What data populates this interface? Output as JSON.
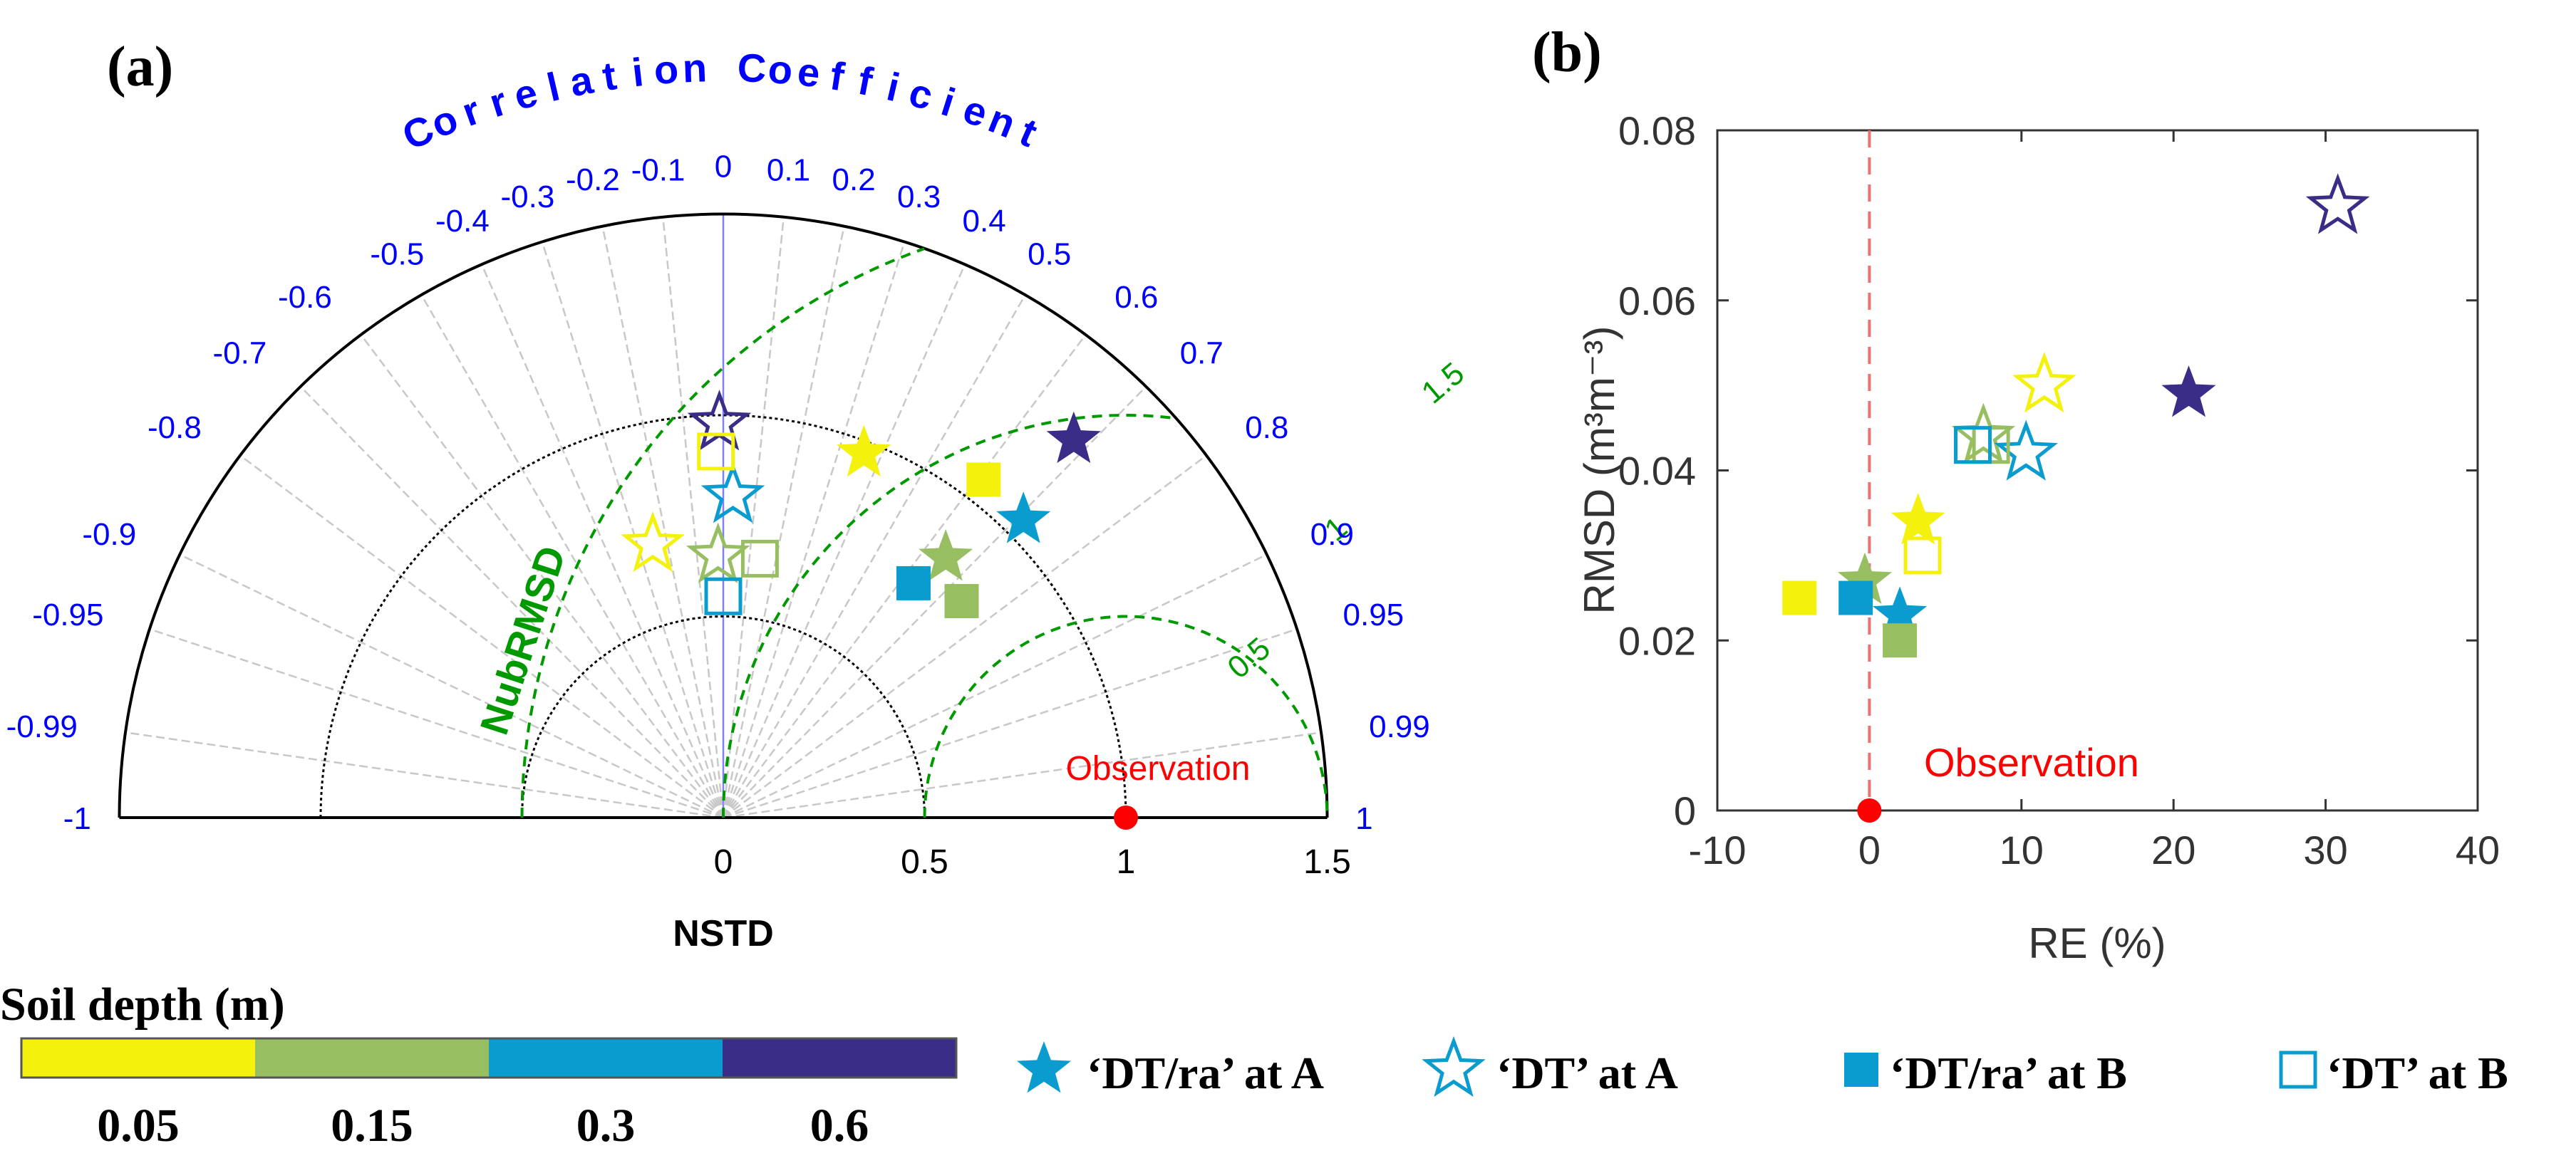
{
  "colors": {
    "depth_0.05": "#F4F10C",
    "depth_0.15": "#98BE62",
    "depth_0.3": "#0A9CCF",
    "depth_0.6": "#3A2D88",
    "observation": "#FF0000",
    "axis_text_blue": "#0000FF",
    "nubrmsd_green": "#009A00"
  },
  "panel_a": {
    "label": "(a)",
    "corr_title": "Correlation Coefficient",
    "xlabel": "NSTD",
    "nubrmsd_label": "NubRMSD",
    "observation_label": "Observation"
  },
  "panel_b": {
    "label": "(b)",
    "xlabel": "RE (%)",
    "ylabel": "RMSD (m³m⁻³)",
    "observation_label": "Observation"
  },
  "colorbar": {
    "title": "Soil depth (m)",
    "labels": [
      "0.05",
      "0.15",
      "0.3",
      "0.6"
    ]
  },
  "legend": [
    {
      "label": "‘DT/ra’ at A",
      "marker": "filled-star"
    },
    {
      "label": "‘DT’ at A",
      "marker": "open-star"
    },
    {
      "label": "‘DT/ra’ at B",
      "marker": "filled-square"
    },
    {
      "label": "‘DT’ at B",
      "marker": "open-square"
    }
  ],
  "chart_data": [
    {
      "type": "scatter",
      "subtype": "taylor-diagram",
      "title": "(a)",
      "xlabel": "NSTD",
      "angular_label": "Correlation Coefficient",
      "xlim": [
        -1.5,
        1.5
      ],
      "radial_ticks": [
        0,
        0.5,
        1,
        1.5
      ],
      "radial_tick_labels": [
        "0",
        "0.5",
        "1",
        "1.5"
      ],
      "correlation_ticks": [
        -1,
        -0.99,
        -0.95,
        -0.9,
        -0.8,
        -0.7,
        -0.6,
        -0.5,
        -0.4,
        -0.3,
        -0.2,
        -0.1,
        0,
        0.1,
        0.2,
        0.3,
        0.4,
        0.5,
        0.6,
        0.7,
        0.8,
        0.9,
        0.95,
        0.99,
        1
      ],
      "correlation_tick_labels": [
        "-1",
        "-0.99",
        "-0.95",
        "-0.9",
        "-0.8",
        "-0.7",
        "-0.6",
        "-0.5",
        "-0.4",
        "-0.3",
        "-0.2",
        "-0.1",
        "0",
        "0.1",
        "0.2",
        "0.3",
        "0.4",
        "0.5",
        "0.6",
        "0.7",
        "0.8",
        "0.9",
        "0.95",
        "0.99",
        "1"
      ],
      "nubrmsd_contours": [
        0.5,
        1,
        1.5
      ],
      "nubrmsd_labels": [
        "0.5",
        "1",
        "1.5"
      ],
      "observation": {
        "nstd": 1.0,
        "corr": 1.0
      },
      "series": [
        {
          "name": "‘DT/ra’ at A",
          "marker": "filled-star",
          "points": [
            {
              "depth": 0.05,
              "nstd": 0.97,
              "corr": 0.36
            },
            {
              "depth": 0.15,
              "nstd": 0.85,
              "corr": 0.65
            },
            {
              "depth": 0.3,
              "nstd": 1.05,
              "corr": 0.71
            },
            {
              "depth": 0.6,
              "nstd": 1.28,
              "corr": 0.68
            }
          ]
        },
        {
          "name": "‘DT’ at A",
          "marker": "open-star",
          "points": [
            {
              "depth": 0.05,
              "nstd": 0.7,
              "corr": -0.25
            },
            {
              "depth": 0.15,
              "nstd": 0.65,
              "corr": -0.02
            },
            {
              "depth": 0.3,
              "nstd": 0.8,
              "corr": 0.03
            },
            {
              "depth": 0.6,
              "nstd": 0.98,
              "corr": -0.01
            }
          ]
        },
        {
          "name": "‘DT/ra’ at B",
          "marker": "filled-square",
          "points": [
            {
              "depth": 0.05,
              "nstd": 1.06,
              "corr": 0.61
            },
            {
              "depth": 0.15,
              "nstd": 0.8,
              "corr": 0.74
            },
            {
              "depth": 0.3,
              "nstd": 0.75,
              "corr": 0.63
            }
          ]
        },
        {
          "name": "‘DT’ at B",
          "marker": "open-square",
          "points": [
            {
              "depth": 0.05,
              "nstd": 0.91,
              "corr": -0.02
            },
            {
              "depth": 0.15,
              "nstd": 0.65,
              "corr": 0.14
            },
            {
              "depth": 0.3,
              "nstd": 0.55,
              "corr": 0.0
            }
          ]
        }
      ]
    },
    {
      "type": "scatter",
      "title": "(b)",
      "xlabel": "RE (%)",
      "ylabel": "RMSD (m³m⁻³)",
      "xlim": [
        -10,
        40
      ],
      "ylim": [
        0,
        0.08
      ],
      "xticks": [
        -10,
        0,
        10,
        20,
        30,
        40
      ],
      "xtick_labels": [
        "-10",
        "0",
        "10",
        "20",
        "30",
        "40"
      ],
      "yticks": [
        0,
        0.02,
        0.04,
        0.06,
        0.08
      ],
      "ytick_labels": [
        "0",
        "0.02",
        "0.04",
        "0.06",
        "0.08"
      ],
      "observation": {
        "re": 0,
        "rmsd": 0
      },
      "series": [
        {
          "name": "‘DT/ra’ at A",
          "marker": "filled-star",
          "points": [
            {
              "depth": 0.05,
              "re": 3.2,
              "rmsd": 0.034
            },
            {
              "depth": 0.15,
              "re": -0.3,
              "rmsd": 0.027
            },
            {
              "depth": 0.3,
              "re": 2.0,
              "rmsd": 0.023
            },
            {
              "depth": 0.6,
              "re": 21.0,
              "rmsd": 0.049
            }
          ]
        },
        {
          "name": "‘DT’ at A",
          "marker": "open-star",
          "points": [
            {
              "depth": 0.05,
              "re": 11.5,
              "rmsd": 0.05
            },
            {
              "depth": 0.15,
              "re": 7.5,
              "rmsd": 0.044
            },
            {
              "depth": 0.3,
              "re": 10.3,
              "rmsd": 0.042
            },
            {
              "depth": 0.6,
              "re": 30.8,
              "rmsd": 0.071
            }
          ]
        },
        {
          "name": "‘DT/ra’ at B",
          "marker": "filled-square",
          "points": [
            {
              "depth": 0.05,
              "re": -4.6,
              "rmsd": 0.025
            },
            {
              "depth": 0.15,
              "re": 2.0,
              "rmsd": 0.02
            },
            {
              "depth": 0.3,
              "re": -0.9,
              "rmsd": 0.025
            }
          ]
        },
        {
          "name": "‘DT’ at B",
          "marker": "open-square",
          "points": [
            {
              "depth": 0.05,
              "re": 3.5,
              "rmsd": 0.03
            },
            {
              "depth": 0.15,
              "re": 8.0,
              "rmsd": 0.043
            },
            {
              "depth": 0.3,
              "re": 6.8,
              "rmsd": 0.043
            }
          ]
        }
      ]
    }
  ]
}
